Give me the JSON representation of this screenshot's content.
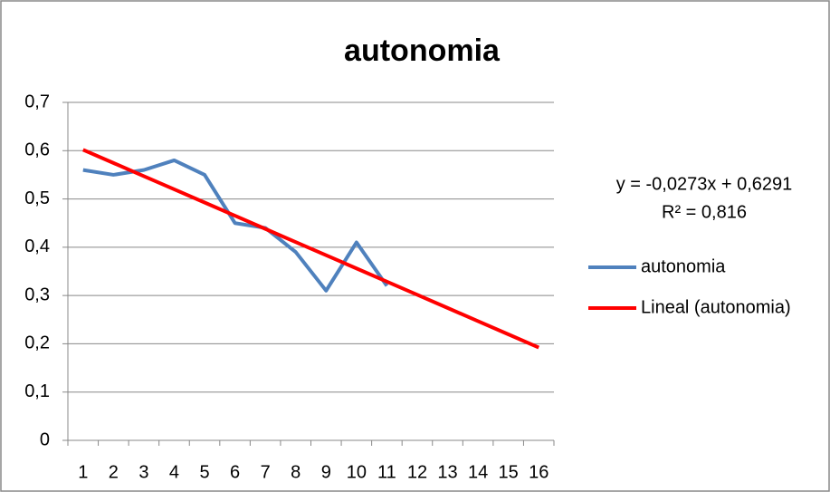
{
  "chart_data": {
    "type": "line",
    "title": "autonomia",
    "categories": [
      "1",
      "2",
      "3",
      "4",
      "5",
      "6",
      "7",
      "8",
      "9",
      "10",
      "11",
      "12",
      "13",
      "14",
      "15",
      "16"
    ],
    "series": [
      {
        "name": "autonomia",
        "color": "#4f81bd",
        "values": [
          0.56,
          0.55,
          0.56,
          0.58,
          0.55,
          0.45,
          0.44,
          0.39,
          0.31,
          0.41,
          0.32,
          null,
          null,
          null,
          null,
          null
        ]
      },
      {
        "name": "Lineal (autonomia)",
        "color": "#ff0000",
        "values": [
          0.6018,
          0.5745,
          0.5472,
          0.5199,
          0.4926,
          0.4653,
          0.438,
          0.4107,
          0.3834,
          0.3561,
          0.3288,
          0.3015,
          0.2742,
          0.2469,
          0.2196,
          0.1923
        ]
      }
    ],
    "annotations": [
      "y = -0,0273x + 0,6291",
      "R² = 0,816"
    ],
    "ylim": [
      0,
      0.7
    ],
    "yticks": [
      0,
      {
        "value": 0.1,
        "label": "0,1"
      },
      {
        "value": 0.2,
        "label": "0,2"
      },
      {
        "value": 0.3,
        "label": "0,3"
      },
      {
        "value": 0.4,
        "label": "0,4"
      },
      {
        "value": 0.5,
        "label": "0,5"
      },
      {
        "value": 0.6,
        "label": "0,6"
      },
      {
        "value": 0.7,
        "label": "0,7"
      }
    ],
    "grid": true,
    "legend": "right"
  }
}
